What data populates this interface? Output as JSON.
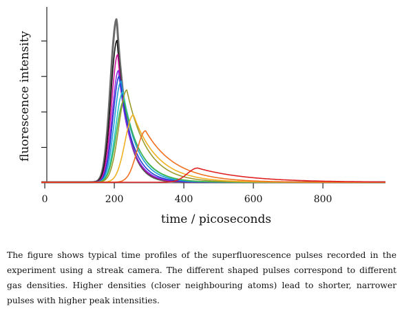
{
  "chart_data": {
    "type": "line",
    "title": "",
    "xlabel": "time / picoseconds",
    "ylabel": "fluorescence intensity",
    "xlim": [
      -10,
      980
    ],
    "ylim": [
      0,
      1.0
    ],
    "x_ticks": [
      0,
      200,
      400,
      600,
      800
    ],
    "x_tick_labels": [
      "0",
      "200",
      "400",
      "600",
      "800"
    ],
    "y_ticks": [
      0.2,
      0.4,
      0.6,
      0.8
    ],
    "y_tick_labels_shown": false,
    "legend": "none",
    "grid": false,
    "series": [
      {
        "color": "#6a6a6a",
        "peak_time": 207,
        "peak": 0.92,
        "rise": 18,
        "decay": 30,
        "width": 3
      },
      {
        "color": "#111111",
        "peak_time": 208,
        "peak": 0.8,
        "rise": 18,
        "decay": 32,
        "width": 1.6
      },
      {
        "color": "#cc1199",
        "peak_time": 210,
        "peak": 0.72,
        "rise": 18,
        "decay": 33,
        "width": 1.6
      },
      {
        "color": "#8a2be2",
        "peak_time": 212,
        "peak": 0.63,
        "rise": 18,
        "decay": 35,
        "width": 1.6
      },
      {
        "color": "#1f3fd1",
        "peak_time": 215,
        "peak": 0.6,
        "rise": 19,
        "decay": 38,
        "width": 1.6
      },
      {
        "color": "#1f9ad6",
        "peak_time": 220,
        "peak": 0.57,
        "rise": 20,
        "decay": 42,
        "width": 1.6
      },
      {
        "color": "#22c4c8",
        "peak_time": 225,
        "peak": 0.51,
        "rise": 21,
        "decay": 46,
        "width": 1.6
      },
      {
        "color": "#44b248",
        "peak_time": 228,
        "peak": 0.46,
        "rise": 22,
        "decay": 48,
        "width": 1.6
      },
      {
        "color": "#9a9a2a",
        "peak_time": 236,
        "peak": 0.52,
        "rise": 23,
        "decay": 58,
        "width": 1.6
      },
      {
        "color": "#f0b020",
        "peak_time": 255,
        "peak": 0.38,
        "rise": 24,
        "decay": 70,
        "width": 1.6
      },
      {
        "color": "#f07020",
        "peak_time": 290,
        "peak": 0.29,
        "rise": 25,
        "decay": 85,
        "width": 1.6
      },
      {
        "color": "#e02020",
        "peak_time": 440,
        "peak": 0.08,
        "rise": 30,
        "decay": 140,
        "width": 1.6
      }
    ]
  },
  "caption": "The figure shows typical time profiles of the superfluorescence pulses recorded in the experiment using a streak camera. The different shaped pulses correspond to different gas densities. Higher densities (closer neighbouring atoms) lead to shorter, narrower pulses with higher peak intensities."
}
